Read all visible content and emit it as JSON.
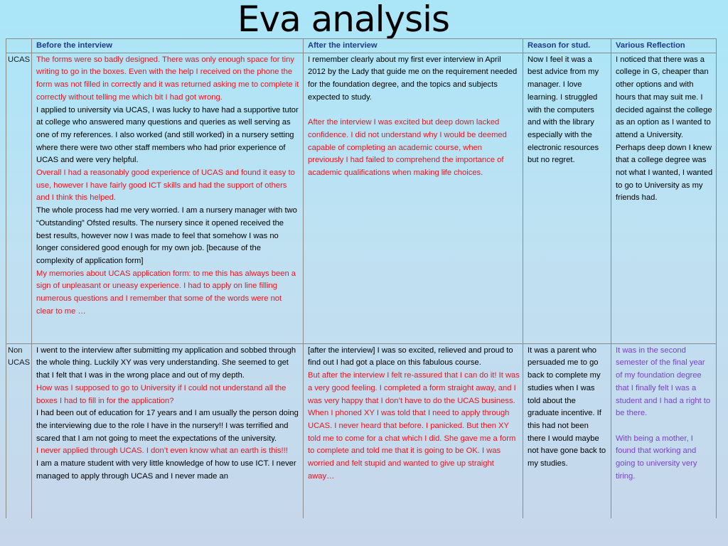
{
  "title": "Eva analysis",
  "columns": {
    "label": "",
    "before": "Before the interview",
    "after": "After the interview",
    "reason": "Reason for stud.",
    "reflection": "Various Reflection"
  },
  "rows": [
    {
      "label": "UCAS",
      "before": [
        {
          "color": "red",
          "text": "The forms were so badly designed. There was only enough space for tiny writing to go in the boxes. Even with the help I received on the phone the form was not filled in correctly and it was returned asking me to complete it correctly without telling me which bit I had got wrong."
        },
        {
          "color": "black",
          "text": "I applied to university via UCAS, I was lucky to have had a supportive tutor at college who answered many questions and queries as well serving as one of my references. I also worked (and still worked) in a nursery setting where there were two other staff members who had prior experience of UCAS and were very helpful."
        },
        {
          "color": "red",
          "text": "Overall I had a reasonably good experience of UCAS and found it easy to use, however I have fairly good ICT skills and had the support of others and I think this helped."
        },
        {
          "color": "black",
          "text": "The whole process had me very worried. I am a nursery manager with two “Outstanding” Ofsted results. The nursery since it opened received the best results, however now I was made to feel that somehow I was no longer considered good enough for my own job. [because of the complexity of application form]"
        },
        {
          "color": "red",
          "text": "My memories about UCAS application form: to me this has always been a sign of unpleasant or uneasy experience. I had to apply on line filling numerous questions  and I remember that some of the words  were not clear to me …"
        }
      ],
      "after": [
        {
          "color": "black",
          "text": "I remember clearly about my first ever interview in April 2012 by the Lady that guide me on the requirement needed for the foundation degree, and the topics and subjects expected to study."
        },
        {
          "color": "red",
          "gap": true,
          "text": "After the interview I was excited but deep down lacked confidence. I did not understand why I would be deemed capable of completing an academic course, when previously I had failed to comprehend the importance of academic qualifications when making life choices."
        }
      ],
      "reason": [
        {
          "color": "black",
          "text": "Now I feel it was a best advice from my manager. I love learning. I struggled with the computers and with the library especially with the electronic resources but no regret."
        }
      ],
      "reflection": [
        {
          "color": "black",
          "text": "I noticed that there was a college in G, cheaper than other options and with hours that may suit me. I decided against the college as an option as I wanted to attend a University. Perhaps deep down I knew that a college degree was not what I wanted, I wanted to go to University as my friends had."
        }
      ]
    },
    {
      "label": "Non UCAS",
      "before": [
        {
          "color": "black",
          "text": "I went to the interview after submitting my application and sobbed through the whole thing. Luckily XY was very understanding. She seemed to get that I felt that I was in the wrong place and out of my depth."
        },
        {
          "color": "red",
          "text": "How was I supposed to go to University if I could not understand all the boxes I had to fill in for the application?"
        },
        {
          "color": "black",
          "text": "I had been out of education for 17 years and I am usually the person doing the interviewing due to the role I have in the nursery!! I was terrified and scared that I am not going to meet the expectations of the university."
        },
        {
          "color": "red",
          "text": "I never applied through UCAS. I don’t even know what an earth is this!!!"
        },
        {
          "color": "black",
          "text": "I am a mature student with very little knowledge of how to use ICT. I never managed to apply through UCAS and I never made an"
        }
      ],
      "after": [
        {
          "color": "black",
          "text": "[after the interview] I was so excited, relieved and proud to find out I had got a place on this fabulous course."
        },
        {
          "color": "red",
          "text": "But after the interview I felt re-assured that I can do it! It was a very good feeling. I completed a form straight away, and I was very happy that I don’t have to do the UCAS business."
        },
        {
          "color": "red",
          "text": "When I phoned XY I was told that I need to apply through UCAS. I never heard that before. I panicked. But then XY told me to come for a chat which I did. She gave me a form to complete and told me that it is going to be OK.  I was worried and felt stupid and wanted to give up straight away…"
        }
      ],
      "reason": [
        {
          "color": "black",
          "text": "It was a parent who persuaded me to go back to complete my studies when I was told about the graduate incentive. If this had not been there I would maybe not have gone back to my studies."
        }
      ],
      "reflection": [
        {
          "color": "purple",
          "text": "It was in the second semester of the final year of my foundation degree that I finally felt I was a student and I had a right to be there."
        },
        {
          "color": "purple",
          "gap": true,
          "text": "With being a mother, I found that working and going to university very tiring."
        }
      ]
    }
  ]
}
